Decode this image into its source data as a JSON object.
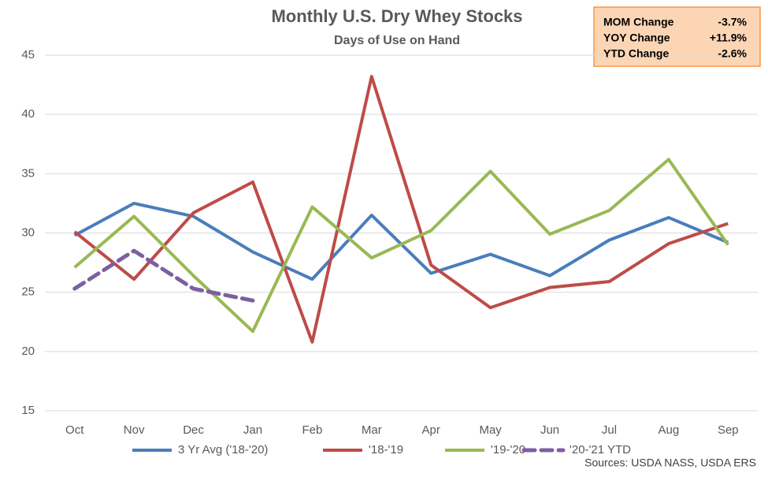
{
  "chart_data": {
    "type": "line",
    "title": "Monthly U.S. Dry Whey Stocks",
    "subtitle": "Days of Use on Hand",
    "categories": [
      "Oct",
      "Nov",
      "Dec",
      "Jan",
      "Feb",
      "Mar",
      "Apr",
      "May",
      "Jun",
      "Jul",
      "Aug",
      "Sep"
    ],
    "series": [
      {
        "name": "3 Yr Avg ('18-'20)",
        "color": "#4a7ebb",
        "values": [
          29.8,
          32.5,
          31.4,
          28.4,
          26.1,
          31.5,
          26.6,
          28.2,
          26.4,
          29.4,
          31.3,
          29.2
        ]
      },
      {
        "name": "'18-'19",
        "color": "#be4b48",
        "values": [
          30.1,
          26.1,
          31.7,
          34.3,
          20.8,
          43.2,
          27.3,
          23.7,
          25.4,
          25.9,
          29.1,
          30.8
        ]
      },
      {
        "name": "'19-'20",
        "color": "#98b954",
        "values": [
          27.1,
          31.4,
          26.4,
          21.7,
          32.2,
          27.9,
          30.2,
          35.2,
          29.9,
          31.9,
          36.2,
          29.0
        ]
      },
      {
        "name": "'20-'21 YTD",
        "color": "#7d5fa0",
        "dashed": true,
        "values": [
          25.3,
          28.5,
          25.3,
          24.3,
          null,
          null,
          null,
          null,
          null,
          null,
          null,
          null
        ]
      }
    ],
    "ylim": [
      15,
      45
    ],
    "yticks": [
      15,
      20,
      25,
      30,
      35,
      40,
      45
    ],
    "grid": true,
    "info_box": [
      [
        "MOM Change",
        "-3.7%"
      ],
      [
        "YOY Change",
        "+11.9%"
      ],
      [
        "YTD Change",
        "-2.6%"
      ]
    ],
    "source": "Sources: USDA NASS, USDA ERS"
  }
}
